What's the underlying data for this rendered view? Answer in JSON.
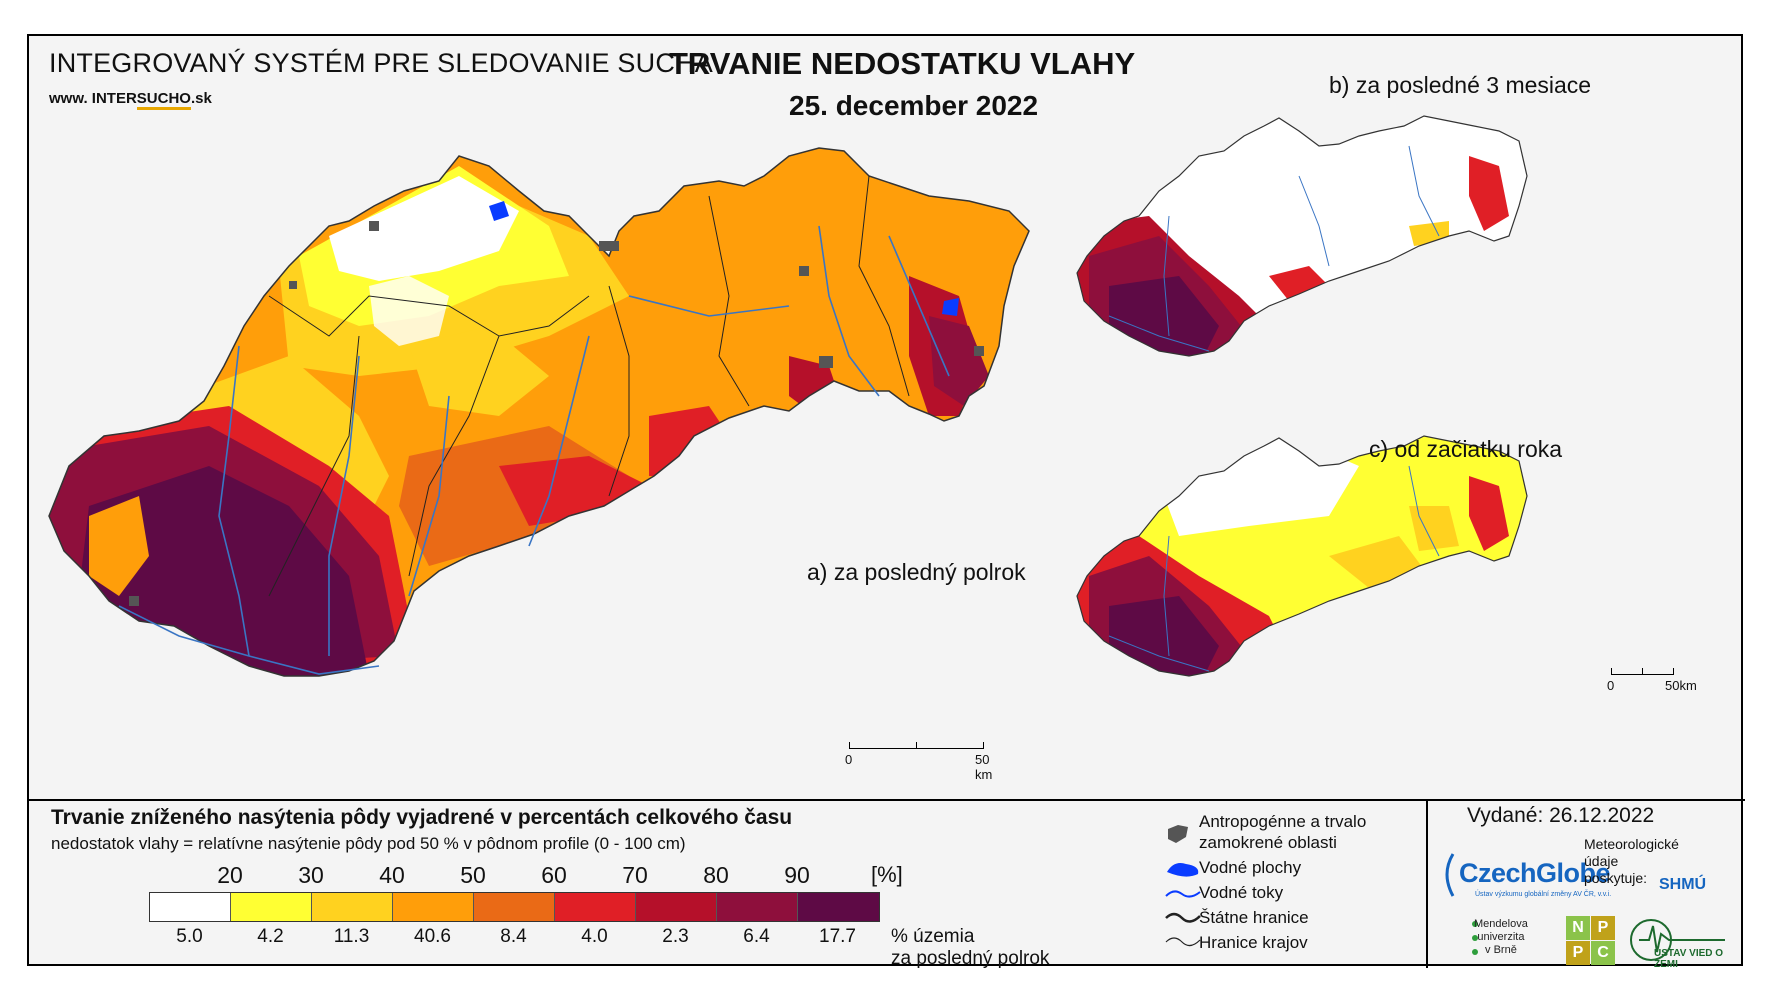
{
  "header": {
    "system_title": "INTEGROVANÝ SYSTÉM PRE SLEDOVANIE SUCHA",
    "website_prefix": "www. INTER",
    "website_accent": "SUCHO",
    "website_suffix": ".sk",
    "main_title": "TRVANIE NEDOSTATKU VLAHY",
    "date": "25. december 2022"
  },
  "panels": {
    "a_label": "a) za posledný polrok",
    "b_label": "b) za posledné 3 mesiace",
    "c_label": "c) od začiatku roka"
  },
  "scalebars": {
    "main_zero": "0",
    "main_end": "50 km",
    "small_zero": "0",
    "small_end": "50km"
  },
  "legend": {
    "title": "Trvanie zníženého nasýtenia pôdy vyjadrené v percentách celkového času",
    "subtitle": "nedostatok vlahy = relatívne nasýtenie pôdy pod 50 % v pôdnom profile (0 - 100 cm)",
    "ticks": [
      "20",
      "30",
      "40",
      "50",
      "60",
      "70",
      "80",
      "90"
    ],
    "unit": "[%]",
    "colors": [
      "#ffffff",
      "#ffff33",
      "#ffd21f",
      "#ff9e0a",
      "#ea6a16",
      "#e01f26",
      "#b5102a",
      "#8e0f3c",
      "#5e0a45"
    ],
    "percentages": [
      "5.0",
      "4.2",
      "11.3",
      "40.6",
      "8.4",
      "4.0",
      "2.3",
      "6.4",
      "17.7"
    ],
    "pct_caption_line1": "% územia",
    "pct_caption_line2": "za posledný polrok"
  },
  "symbols": {
    "anthropogenic_line1": "Antropogénne a trvalo",
    "anthropogenic_line2": "zamokrené oblasti",
    "water_bodies": "Vodné plochy",
    "rivers": "Vodné toky",
    "state_border": "Štátne hranice",
    "region_border": "Hranice krajov",
    "icons": [
      "anthropogenic-area-icon",
      "water-body-icon",
      "river-icon",
      "state-border-icon",
      "region-border-icon"
    ]
  },
  "credits": {
    "issued": "Vydané: 26.12.2022",
    "czechglobe": "CzechGlobe",
    "czechglobe_sub": "Ústav výzkumu globální změny AV ČR, v.v.i.",
    "meteo_line1": "Meteorologické",
    "meteo_line2": "údaje",
    "meteo_line3": "poskytuje:",
    "shmu": "SHMÚ",
    "mendel_line1": "Mendelova",
    "mendel_line2": "univerzita",
    "mendel_line3": "v Brně",
    "nppc_letters": [
      "N",
      "P",
      "P",
      "C"
    ],
    "uvz": "ÚSTAV VIED O ZEMI"
  }
}
